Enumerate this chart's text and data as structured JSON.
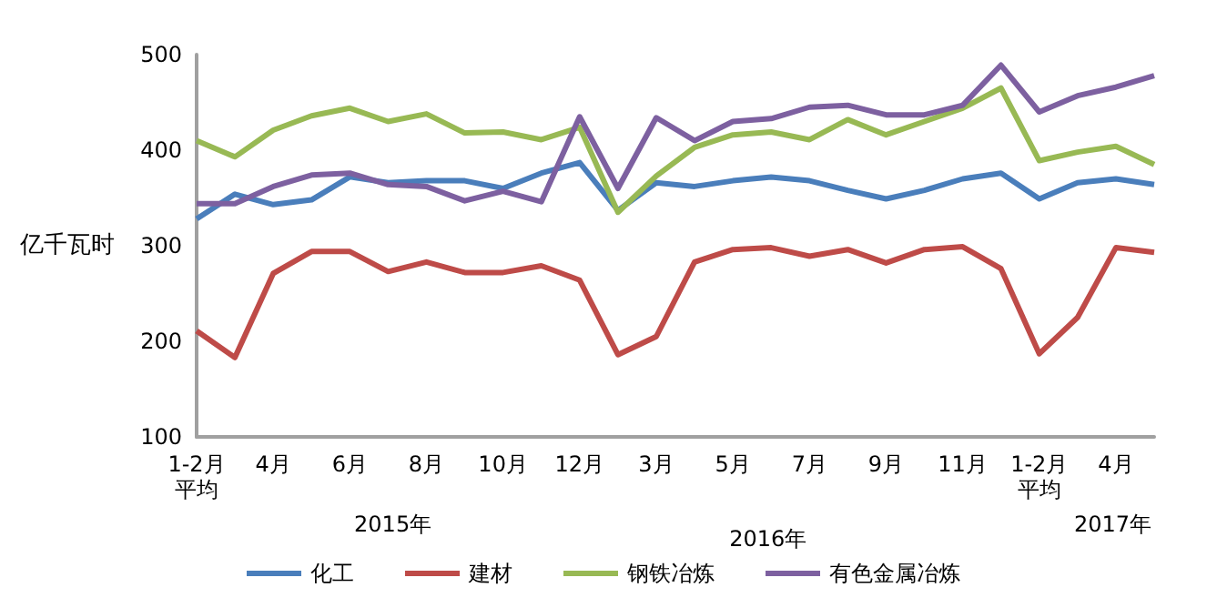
{
  "chart_data": {
    "type": "line",
    "ylabel": "亿千瓦时",
    "categories": [
      "1-2月平均",
      null,
      "4月",
      null,
      "6月",
      null,
      "8月",
      null,
      "10月",
      null,
      "12月",
      null,
      "3月",
      null,
      "5月",
      null,
      "7月",
      null,
      "9月",
      null,
      "11月",
      null,
      "1-2月平均",
      null,
      "4月",
      null
    ],
    "series": [
      {
        "name": "化工",
        "color": "#4a7ebb",
        "values": [
          328,
          354,
          343,
          348,
          372,
          366,
          368,
          368,
          360,
          376,
          387,
          337,
          366,
          362,
          368,
          372,
          368,
          358,
          349,
          358,
          370,
          376,
          349,
          366,
          370,
          364
        ]
      },
      {
        "name": "建材",
        "color": "#be4b48",
        "values": [
          211,
          183,
          271,
          294,
          294,
          273,
          283,
          272,
          272,
          279,
          264,
          186,
          205,
          283,
          296,
          298,
          289,
          296,
          282,
          296,
          299,
          276,
          187,
          225,
          298,
          293
        ]
      },
      {
        "name": "钢铁冶炼",
        "color": "#98b954",
        "values": [
          410,
          393,
          421,
          436,
          444,
          430,
          438,
          418,
          419,
          411,
          424,
          335,
          373,
          403,
          416,
          419,
          411,
          432,
          416,
          430,
          444,
          465,
          389,
          398,
          404,
          385
        ]
      },
      {
        "name": "有色金属冶炼",
        "color": "#7d60a0",
        "values": [
          344,
          344,
          362,
          374,
          376,
          364,
          362,
          347,
          357,
          346,
          435,
          360,
          434,
          410,
          430,
          433,
          445,
          447,
          437,
          437,
          447,
          489,
          440,
          457,
          466,
          478
        ]
      }
    ],
    "ylim": [
      100,
      500
    ],
    "yticks": [
      100,
      200,
      300,
      400,
      500
    ],
    "annotations": [
      "2015年",
      "2016年",
      "2017年"
    ],
    "grid": false,
    "legend": "bottom",
    "marker": "none",
    "line_style": "solid"
  }
}
